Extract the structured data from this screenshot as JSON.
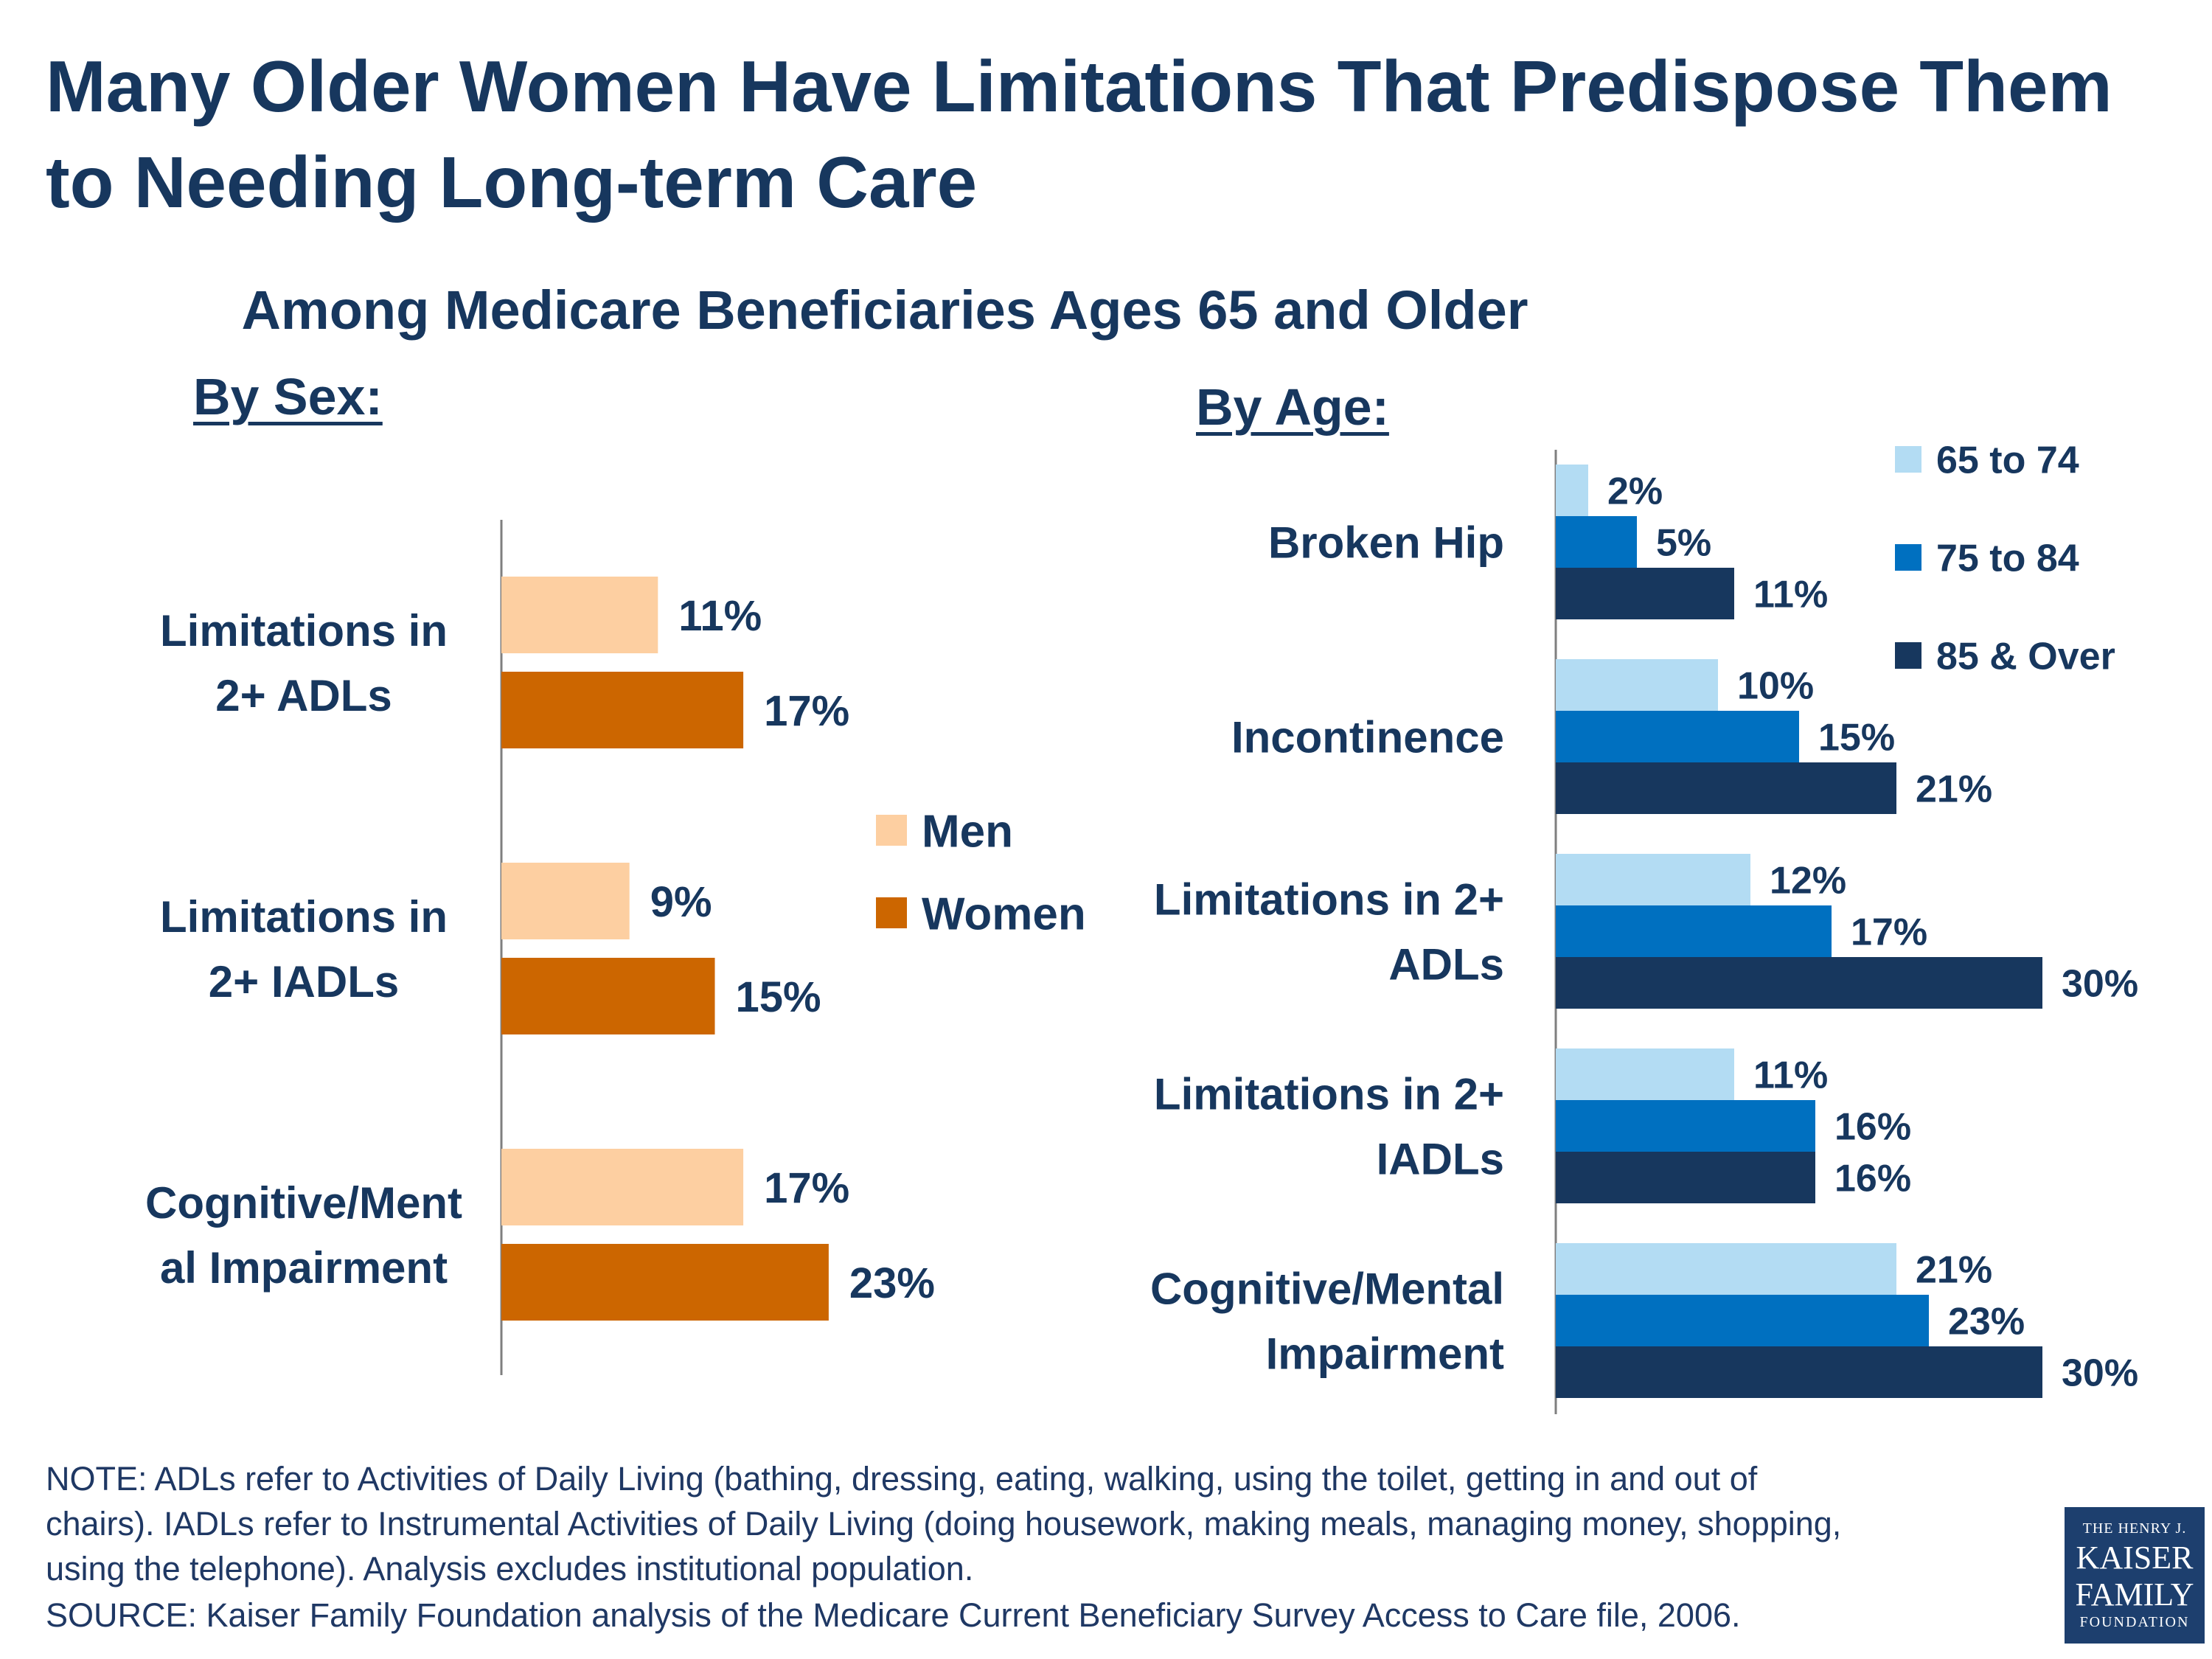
{
  "title": "Many Older Women Have Limitations That Predispose Them to Needing Long-term Care",
  "subtitle": "Among Medicare Beneficiaries Ages 65 and Older",
  "chart_data": [
    {
      "type": "bar",
      "orientation": "horizontal",
      "title": "By Sex:",
      "categories": [
        "Limitations in 2+ ADLs",
        "Limitations in 2+ IADLs",
        "Cognitive/Mental Impairment"
      ],
      "category_lines": [
        [
          "Limitations in",
          "2+ ADLs"
        ],
        [
          "Limitations in",
          "2+ IADLs"
        ],
        [
          "Cognitive/Ment",
          "al Impairment"
        ]
      ],
      "series": [
        {
          "name": "Men",
          "color": "#fdcfa1",
          "values": [
            11,
            9,
            17
          ],
          "labels": [
            "11%",
            "9%",
            "17%"
          ]
        },
        {
          "name": "Women",
          "color": "#cc6600",
          "values": [
            17,
            15,
            23
          ],
          "labels": [
            "17%",
            "15%",
            "23%"
          ]
        }
      ],
      "legend": "right",
      "xlim": [
        0,
        30
      ],
      "grid": false
    },
    {
      "type": "bar",
      "orientation": "horizontal",
      "title": "By Age:",
      "categories": [
        "Broken Hip",
        "Incontinence",
        "Limitations in 2+ ADLs",
        "Limitations in 2+ IADLs",
        "Cognitive/Mental Impairment"
      ],
      "category_lines": [
        [
          "Broken Hip"
        ],
        [
          "Incontinence"
        ],
        [
          "Limitations in 2+",
          "ADLs"
        ],
        [
          "Limitations in 2+",
          "IADLs"
        ],
        [
          "Cognitive/Mental",
          "Impairment"
        ]
      ],
      "series": [
        {
          "name": "65 to 74",
          "color": "#b3dcf3",
          "values": [
            2,
            10,
            12,
            11,
            21
          ],
          "labels": [
            "2%",
            "10%",
            "12%",
            "11%",
            "21%"
          ]
        },
        {
          "name": "75 to 84",
          "color": "#0070c0",
          "values": [
            5,
            15,
            17,
            16,
            23
          ],
          "labels": [
            "5%",
            "15%",
            "17%",
            "16%",
            "23%"
          ]
        },
        {
          "name": "85 & Over",
          "color": "#17375e",
          "values": [
            11,
            21,
            30,
            16,
            30
          ],
          "labels": [
            "11%",
            "21%",
            "30%",
            "16%",
            "30%"
          ]
        }
      ],
      "legend": "top-right",
      "xlim": [
        0,
        30
      ],
      "grid": false
    }
  ],
  "notes": [
    "NOTE:  ADLs refer to Activities of Daily Living (bathing, dressing, eating, walking, using the toilet, getting in and out of",
    "chairs).  IADLs refer to Instrumental Activities of Daily Living (doing housework, making meals, managing money, shopping,",
    "using the telephone). Analysis excludes institutional population."
  ],
  "source": "SOURCE:  Kaiser Family Foundation analysis of the Medicare Current Beneficiary Survey Access to Care file, 2006.",
  "logo": {
    "line1": "THE HENRY J.",
    "line2": "KAISER",
    "line3": "FAMILY",
    "line4": "FOUNDATION"
  }
}
